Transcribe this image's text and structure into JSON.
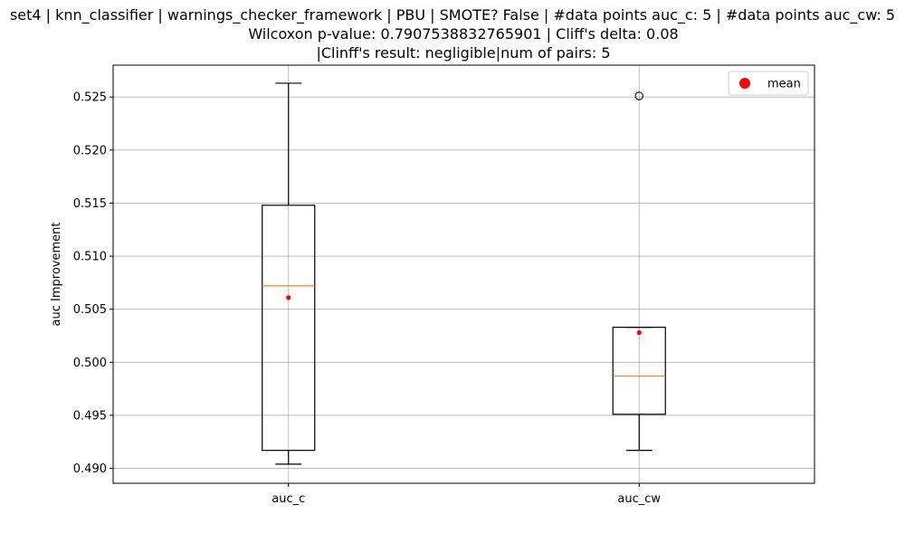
{
  "chart_data": {
    "type": "box",
    "title_lines": [
      "set4 | knn_classifier | warnings_checker_framework | PBU | SMOTE? False | #data points auc_c: 5 | #data points auc_cw: 5",
      "Wilcoxon p-value: 0.7907538832765901 | Cliff's delta: 0.08",
      "|Clinff's result: negligible|num of pairs: 5"
    ],
    "xlabel": "",
    "ylabel": "auc Improvement",
    "ylim": [
      0.4886,
      0.528
    ],
    "yticks": [
      0.49,
      0.495,
      0.5,
      0.505,
      0.51,
      0.515,
      0.52,
      0.525
    ],
    "ytick_labels": [
      "0.490",
      "0.495",
      "0.500",
      "0.505",
      "0.510",
      "0.515",
      "0.520",
      "0.525"
    ],
    "categories": [
      "auc_c",
      "auc_cw"
    ],
    "boxes": [
      {
        "name": "auc_c",
        "whisker_low": 0.4904,
        "q1": 0.4917,
        "median": 0.5072,
        "q3": 0.5148,
        "whisker_high": 0.5263,
        "mean": 0.5061,
        "outliers": []
      },
      {
        "name": "auc_cw",
        "whisker_low": 0.4917,
        "q1": 0.4951,
        "median": 0.4987,
        "q3": 0.5033,
        "whisker_high": 0.5033,
        "mean": 0.5028,
        "outliers": [
          0.5251
        ]
      }
    ],
    "grid": true,
    "legend": {
      "position": "top-right",
      "entries": [
        {
          "label": "mean",
          "marker": "circle",
          "color": "#ff0000"
        }
      ]
    },
    "colors": {
      "box": "#000000",
      "median": "#ff7f0e",
      "mean": "#ff0000",
      "grid": "#b0b0b0",
      "outlier": "#000000"
    }
  }
}
